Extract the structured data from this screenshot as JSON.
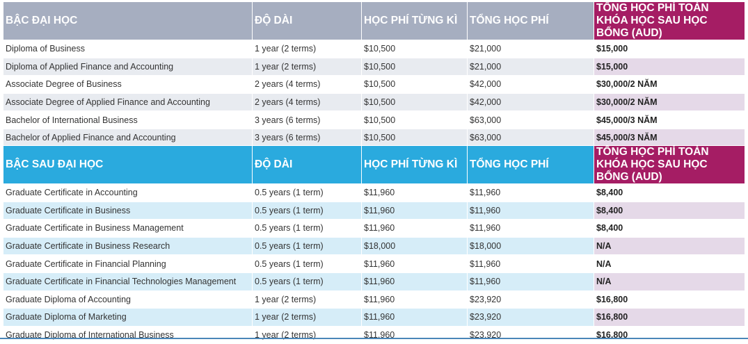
{
  "undergrad": {
    "headers": [
      "BẬC ĐẠI HỌC",
      "ĐỘ DÀI",
      "HỌC PHÍ TỪNG KÌ",
      "TỔNG HỌC PHÍ",
      "TỔNG HỌC PHÍ TOÀN KHÓA HỌC SAU HỌC BỔNG (AUD)"
    ],
    "rows": [
      [
        "Diploma of Business",
        "1 year (2 terms)",
        "$10,500",
        "$21,000",
        "$15,000"
      ],
      [
        "Diploma of Applied Finance and Accounting",
        "1 year (2 terms)",
        "$10,500",
        "$21,000",
        "$15,000"
      ],
      [
        "Associate Degree of Business",
        "2 years (4 terms)",
        "$10,500",
        "$42,000",
        "$30,000/2 NĂM"
      ],
      [
        "Associate Degree of Applied Finance and Accounting",
        "2 years (4 terms)",
        "$10,500",
        "$42,000",
        "$30,000/2 NĂM"
      ],
      [
        "Bachelor of International  Business",
        "3 years (6 terms)",
        "$10,500",
        "$63,000",
        "$45,000/3 NĂM"
      ],
      [
        "Bachelor of Applied Finance and Accounting",
        "3 years (6 terms)",
        "$10,500",
        "$63,000",
        "$45,000/3 NĂM"
      ]
    ]
  },
  "postgrad": {
    "headers": [
      "BẬC SAU ĐẠI HỌC",
      "ĐỘ DÀI",
      "HỌC PHÍ TỪNG KÌ",
      "TỔNG HỌC PHÍ",
      "TỔNG HỌC PHÍ TOÀN KHÓA HỌC SAU HỌC BỔNG (AUD)"
    ],
    "rows": [
      [
        "Graduate Certificate in Accounting",
        "0.5 years (1 term)",
        "$11,960",
        "$11,960",
        "$8,400"
      ],
      [
        "Graduate Certificate in Business",
        "0.5 years (1 term)",
        "$11,960",
        "$11,960",
        "$8,400"
      ],
      [
        "Graduate Certificate in Business Management",
        "0.5 years (1 term)",
        "$11,960",
        "$11,960",
        "$8,400"
      ],
      [
        "Graduate Certificate in Business Research",
        "0.5 years (1 term)",
        "$18,000",
        "$18,000",
        "N/A"
      ],
      [
        "Graduate Certificate in Financial Planning",
        "0.5 years (1 term)",
        "$11,960",
        "$11,960",
        "N/A"
      ],
      [
        "Graduate Certificate in Financial Technologies Management",
        "0.5 years (1 term)",
        "$11,960",
        "$11,960",
        "N/A"
      ],
      [
        "Graduate Diploma of Accounting",
        "1 year (2 terms)",
        "$11,960",
        "$23,920",
        "$16,800"
      ],
      [
        "Graduate Diploma of Marketing",
        "1 year (2 terms)",
        "$11,960",
        "$23,920",
        "$16,800"
      ],
      [
        "Graduate Diploma of International  Business",
        "1 year (2 terms)",
        "$11,960",
        "$23,920",
        "$16,800"
      ]
    ]
  },
  "colors": {
    "undergrad_header": "#a6aec0",
    "postgrad_header": "#2aaade",
    "scholarship_header": "#a51d64",
    "undergrad_stripe": "#e8ebf0",
    "postgrad_stripe": "#d6edf8",
    "scholarship_stripe": "#e5d9e8"
  }
}
